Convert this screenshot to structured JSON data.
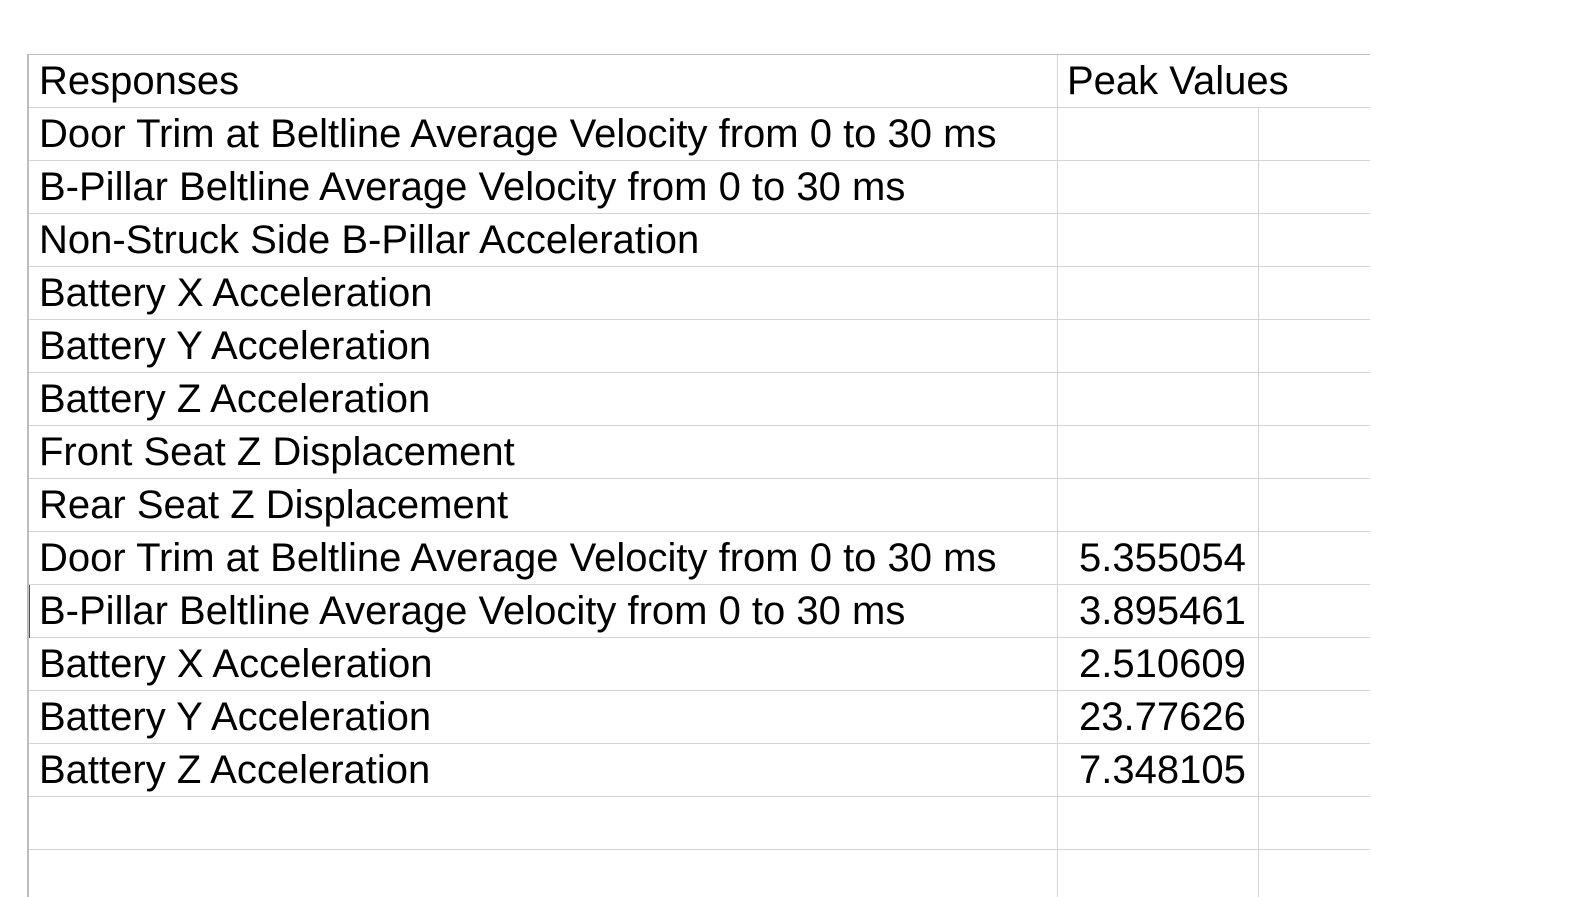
{
  "sheet": {
    "header": {
      "col_a": "Responses",
      "col_b": "Peak Values"
    },
    "rows": [
      {
        "a": "Door Trim at Beltline Average Velocity from 0 to 30 ms",
        "b": ""
      },
      {
        "a": "B-Pillar Beltline Average Velocity from 0 to 30 ms",
        "b": ""
      },
      {
        "a": "Non-Struck Side B-Pillar Acceleration",
        "b": ""
      },
      {
        "a": "Battery X Acceleration",
        "b": ""
      },
      {
        "a": "Battery Y Acceleration",
        "b": ""
      },
      {
        "a": "Battery Z Acceleration",
        "b": ""
      },
      {
        "a": "Front Seat Z Displacement",
        "b": ""
      },
      {
        "a": "Rear Seat Z Displacement",
        "b": ""
      },
      {
        "a": "Door Trim at Beltline Average Velocity from 0 to 30 ms",
        "b": "5.355054"
      },
      {
        "a": "B-Pillar Beltline Average Velocity from 0 to 30 ms",
        "b": "3.895461"
      },
      {
        "a": "Battery X Acceleration",
        "b": "2.510609"
      },
      {
        "a": "Battery Y Acceleration",
        "b": "23.77626"
      },
      {
        "a": "Battery Z Acceleration",
        "b": "7.348105"
      },
      {
        "a": "",
        "b": ""
      },
      {
        "a": "",
        "b": ""
      }
    ],
    "colors": {
      "gridline": "#d4d4d4",
      "active_row_marker": "#217346"
    }
  }
}
